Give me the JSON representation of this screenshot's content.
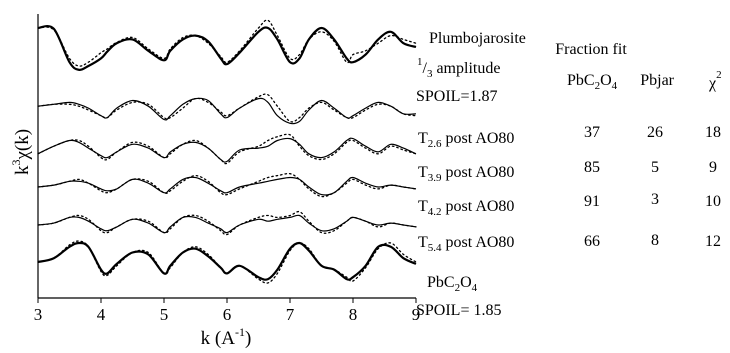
{
  "chart_data": {
    "type": "line",
    "title": "",
    "xlabel": "k (Å⁻¹)",
    "xlabel_main": "k (A",
    "xlabel_sup": "-1",
    "xlabel_close": ")",
    "ylabel_k": "k",
    "ylabel_sup": "3",
    "ylabel_chi": "χ(k)",
    "xlim": [
      3,
      9
    ],
    "x_ticks": [
      "3",
      "4",
      "5",
      "6",
      "7",
      "8",
      "9"
    ],
    "y_ticks": [],
    "legend": "none",
    "grid": false,
    "x": [
      3.0,
      3.25,
      3.5,
      3.65,
      3.8,
      4.0,
      4.1,
      4.25,
      4.5,
      4.75,
      5.0,
      5.1,
      5.3,
      5.5,
      5.7,
      5.9,
      6.0,
      6.2,
      6.5,
      6.65,
      6.8,
      7.0,
      7.15,
      7.3,
      7.5,
      7.7,
      7.9,
      8.0,
      8.2,
      8.4,
      8.6,
      8.8,
      9.0
    ],
    "series": [
      {
        "name": "Plumbojarosite",
        "label_lines": [
          "Plumbojarosite",
          "1/3 amplitude",
          "SPOIL=1.87"
        ],
        "label_pre_sup": "1",
        "label_sub": "3",
        "label_rest": " amplitude",
        "offset": 0,
        "style": "thick",
        "data": [
          0.5,
          0.48,
          -0.4,
          -0.6,
          -0.5,
          -0.3,
          -0.12,
          0.1,
          0.2,
          -0.1,
          -0.35,
          -0.1,
          0.2,
          0.3,
          0.15,
          -0.3,
          -0.45,
          -0.15,
          0.4,
          0.5,
          0.2,
          -0.4,
          -0.3,
          0.2,
          0.5,
          0.2,
          -0.3,
          -0.4,
          -0.2,
          0.2,
          0.4,
          0.1,
          0.0
        ],
        "fit": [
          0.5,
          0.45,
          -0.3,
          -0.5,
          -0.4,
          -0.15,
          -0.05,
          0.12,
          0.25,
          -0.05,
          -0.3,
          -0.05,
          0.25,
          0.3,
          0.1,
          -0.25,
          -0.4,
          -0.1,
          0.5,
          0.7,
          0.3,
          -0.3,
          -0.2,
          0.2,
          0.4,
          0.15,
          -0.4,
          -0.2,
          -0.1,
          0.1,
          0.3,
          0.2,
          0.1
        ]
      },
      {
        "name": "T2.6 post AO80",
        "label_pre": "T",
        "label_sub": "2.6",
        "label_post": " post AO80",
        "offset": 1,
        "style": "thin",
        "data": [
          0.1,
          0.15,
          0.2,
          0.15,
          0.05,
          -0.15,
          -0.2,
          0.05,
          0.25,
          0.1,
          -0.25,
          -0.15,
          0.15,
          0.3,
          0.25,
          -0.1,
          -0.2,
          0.05,
          0.3,
          0.2,
          -0.15,
          -0.35,
          -0.3,
          0.0,
          0.25,
          0.05,
          -0.2,
          -0.15,
          0.05,
          0.2,
          0.1,
          -0.1,
          -0.1
        ],
        "fit": [
          0.1,
          0.15,
          0.15,
          0.1,
          0.0,
          -0.15,
          -0.2,
          0.0,
          0.2,
          0.15,
          -0.2,
          -0.2,
          0.05,
          0.3,
          0.2,
          -0.05,
          -0.15,
          0.05,
          0.35,
          0.4,
          0.1,
          -0.3,
          -0.2,
          0.05,
          0.2,
          0.0,
          -0.2,
          -0.2,
          0.0,
          0.15,
          0.1,
          -0.1,
          -0.15
        ]
      },
      {
        "name": "T3.9 post AO80",
        "label_pre": "T",
        "label_sub": "3.9",
        "label_post": " post AO80",
        "offset": 2,
        "style": "thin",
        "data": [
          -0.1,
          0.1,
          0.25,
          0.2,
          0.05,
          -0.15,
          -0.2,
          -0.05,
          0.15,
          0.05,
          -0.2,
          -0.05,
          0.15,
          0.2,
          0.05,
          -0.25,
          -0.3,
          0.0,
          0.05,
          0.1,
          0.25,
          0.3,
          0.15,
          -0.1,
          -0.2,
          -0.05,
          0.25,
          0.3,
          0.1,
          -0.05,
          0.15,
          0.05,
          -0.1
        ],
        "fit": [
          -0.1,
          0.1,
          0.25,
          0.25,
          0.1,
          -0.2,
          -0.25,
          -0.05,
          0.2,
          0.1,
          -0.2,
          -0.1,
          0.15,
          0.25,
          0.05,
          -0.25,
          -0.35,
          -0.05,
          0.1,
          0.25,
          0.35,
          0.4,
          0.1,
          -0.15,
          -0.25,
          -0.1,
          0.2,
          0.25,
          0.05,
          -0.1,
          0.1,
          0.0,
          -0.1
        ]
      },
      {
        "name": "T4.2 post AO80",
        "label_pre": "T",
        "label_sub": "4.2",
        "label_post": " post AO80",
        "offset": 3,
        "style": "thin",
        "data": [
          0.0,
          0.05,
          0.15,
          0.15,
          0.1,
          -0.05,
          -0.1,
          -0.05,
          0.2,
          0.1,
          -0.15,
          -0.05,
          0.2,
          0.25,
          0.1,
          -0.1,
          -0.15,
          0.0,
          0.1,
          0.15,
          0.2,
          0.25,
          0.2,
          0.0,
          -0.2,
          -0.15,
          0.15,
          0.25,
          0.1,
          0.0,
          0.05,
          0.0,
          -0.05
        ],
        "fit": [
          0.0,
          0.05,
          0.15,
          0.2,
          0.1,
          -0.1,
          -0.15,
          -0.05,
          0.2,
          0.15,
          -0.15,
          -0.1,
          0.15,
          0.3,
          0.15,
          -0.15,
          -0.2,
          -0.05,
          0.15,
          0.25,
          0.3,
          0.35,
          0.2,
          -0.05,
          -0.25,
          -0.15,
          0.1,
          0.2,
          0.05,
          -0.05,
          0.05,
          0.0,
          -0.05
        ]
      },
      {
        "name": "T5.4 post AO80",
        "label_pre": "T",
        "label_sub": "5.4",
        "label_post": " post AO80",
        "offset": 4,
        "style": "thin",
        "data": [
          0.0,
          0.05,
          0.2,
          0.2,
          0.1,
          -0.1,
          -0.15,
          -0.05,
          0.15,
          0.05,
          -0.2,
          -0.05,
          0.2,
          0.2,
          0.05,
          -0.1,
          -0.2,
          0.0,
          0.15,
          0.1,
          0.15,
          0.2,
          0.25,
          0.05,
          -0.15,
          -0.1,
          0.1,
          0.2,
          0.1,
          0.0,
          0.05,
          0.0,
          -0.05
        ],
        "fit": [
          0.0,
          0.05,
          0.2,
          0.25,
          0.15,
          -0.15,
          -0.2,
          -0.05,
          0.15,
          0.1,
          -0.2,
          -0.1,
          0.2,
          0.25,
          0.1,
          -0.15,
          -0.25,
          0.0,
          0.2,
          0.25,
          0.2,
          0.25,
          0.35,
          0.1,
          -0.2,
          -0.15,
          0.1,
          0.2,
          0.1,
          -0.05,
          0.05,
          0.0,
          -0.05
        ]
      },
      {
        "name": "PbC2O4",
        "label_lines": [
          "PbC2O4",
          "SPOIL= 1.85"
        ],
        "label_pre": "PbC",
        "label_sub1": "2",
        "label_mid": "O",
        "label_sub2": "4",
        "label_second": "SPOIL= 1.85",
        "offset": 5,
        "style": "thick",
        "data": [
          0.0,
          0.1,
          0.4,
          0.5,
          0.4,
          -0.2,
          -0.3,
          -0.05,
          0.25,
          0.2,
          -0.3,
          -0.1,
          0.25,
          0.35,
          0.15,
          -0.15,
          -0.3,
          -0.1,
          -0.4,
          -0.45,
          -0.2,
          0.35,
          0.5,
          0.3,
          -0.1,
          -0.2,
          -0.45,
          -0.4,
          -0.1,
          0.4,
          0.4,
          0.1,
          -0.05
        ],
        "fit": [
          0.0,
          0.1,
          0.45,
          0.55,
          0.4,
          -0.25,
          -0.35,
          -0.1,
          0.25,
          0.25,
          -0.3,
          -0.15,
          0.25,
          0.4,
          0.2,
          -0.15,
          -0.3,
          -0.1,
          -0.45,
          -0.55,
          -0.3,
          0.3,
          0.5,
          0.35,
          -0.1,
          -0.2,
          -0.4,
          -0.5,
          -0.15,
          0.35,
          0.5,
          0.2,
          0.0
        ]
      }
    ]
  },
  "fraction_table": {
    "title": "Fraction fit",
    "headers": {
      "pboxalate_pre": "PbC",
      "pboxalate_sub1": "2",
      "pboxalate_mid": "O",
      "pboxalate_sub2": "4",
      "pbjar": "Pbjar",
      "chi_main": "χ",
      "chi_sup": "2"
    },
    "rows": [
      {
        "pbc2o4": "37",
        "pbjar": "26",
        "chi2": "18"
      },
      {
        "pbc2o4": "85",
        "pbjar": "5",
        "chi2": "9"
      },
      {
        "pbc2o4": "91",
        "pbjar": "3",
        "chi2": "10"
      },
      {
        "pbc2o4": "66",
        "pbjar": "8",
        "chi2": "12"
      }
    ]
  }
}
